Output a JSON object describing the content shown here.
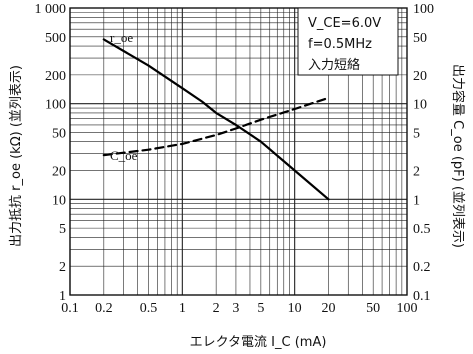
{
  "chart_data": {
    "type": "line",
    "xlabel": "エレクタ電流 I_C (mA)",
    "ylabel_left": "出力抵抗 r_oe (kΩ) (並列表示)",
    "ylabel_right": "出力容量 C_oe (pF) (並列表示)",
    "x_scale": "log",
    "xlim": [
      0.1,
      100
    ],
    "ylim_left": [
      1,
      1000
    ],
    "ylim_right": [
      0.1,
      100
    ],
    "y_scale": "log",
    "grid": true,
    "x_ticks": [
      "0.1",
      "0.2",
      "0.5",
      "1",
      "2",
      "3",
      "5",
      "10",
      "20",
      "50",
      "100"
    ],
    "y_ticks_left": [
      "1 000",
      "500",
      "200",
      "100",
      "50",
      "20",
      "10",
      "5",
      "2",
      "1"
    ],
    "y_ticks_right": [
      "100",
      "50",
      "20",
      "10",
      "5",
      "2",
      "1",
      "0.5",
      "0.2",
      "0.1"
    ],
    "annotations": [
      "V_CE=6.0V",
      "f=0.5MHz",
      "入力短絡"
    ],
    "series": [
      {
        "name": "r_oe",
        "axis": "left",
        "style": "solid",
        "x": [
          0.2,
          0.5,
          1,
          1.5,
          2,
          3,
          5,
          10,
          20
        ],
        "y": [
          470,
          250,
          145,
          105,
          80,
          60,
          40,
          20,
          10
        ]
      },
      {
        "name": "C_oe",
        "axis": "right",
        "style": "dashed",
        "x": [
          0.2,
          0.5,
          1,
          2,
          3,
          5,
          10,
          20
        ],
        "y": [
          2.9,
          3.3,
          3.8,
          4.7,
          5.5,
          6.8,
          8.8,
          11.5
        ]
      }
    ]
  }
}
